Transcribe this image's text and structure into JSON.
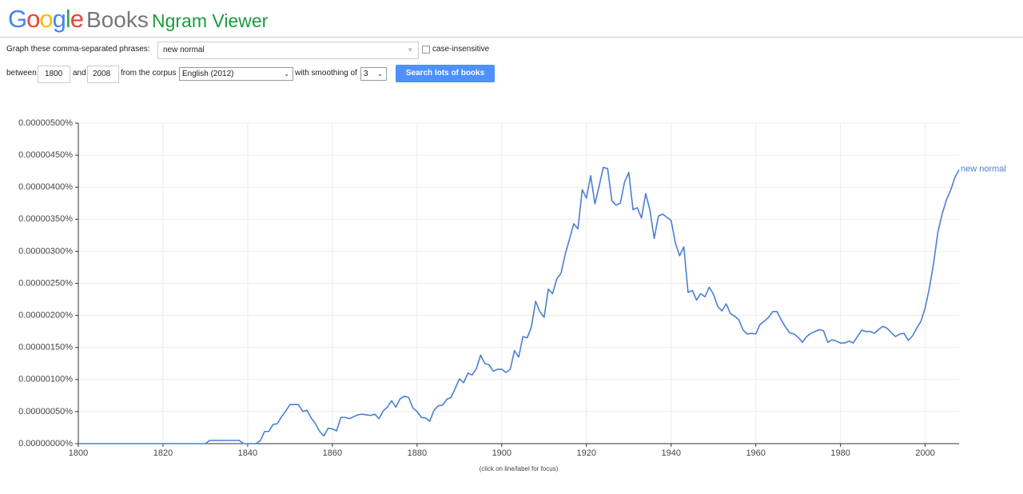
{
  "header": {
    "logo_letters": [
      "G",
      "o",
      "o",
      "g",
      "l",
      "e"
    ],
    "books": "Books",
    "product": "Ngram Viewer"
  },
  "form": {
    "phrases_label": "Graph these comma-separated phrases:",
    "phrases_value": "new normal",
    "case_insensitive": "case-insensitive",
    "between": "between",
    "start_year": "1800",
    "and": "and",
    "end_year": "2008",
    "corpus_label": "from the corpus",
    "corpus": "English (2012)",
    "smoothing_label": "with smoothing of",
    "smoothing": "3",
    "button": "Search lots of books"
  },
  "chart_data": {
    "type": "line",
    "note": "(click on line/label for focus)",
    "grid": true,
    "xlim": [
      1800,
      2008
    ],
    "xticks": [
      1800,
      1820,
      1840,
      1860,
      1880,
      1900,
      1920,
      1940,
      1960,
      1980,
      2000
    ],
    "ylim": [
      0,
      5e-06
    ],
    "yticks": [
      {
        "value": 0,
        "label": "0.00000000%"
      },
      {
        "value": 5e-07,
        "label": "0.00000050%"
      },
      {
        "value": 1e-06,
        "label": "0.00000100%"
      },
      {
        "value": 1.5e-06,
        "label": "0.00000150%"
      },
      {
        "value": 2e-06,
        "label": "0.00000200%"
      },
      {
        "value": 2.5e-06,
        "label": "0.00000250%"
      },
      {
        "value": 3e-06,
        "label": "0.00000300%"
      },
      {
        "value": 3.5e-06,
        "label": "0.00000350%"
      },
      {
        "value": 4e-06,
        "label": "0.00000400%"
      },
      {
        "value": 4.5e-06,
        "label": "0.00000450%"
      },
      {
        "value": 5e-06,
        "label": "0.00000500%"
      }
    ],
    "x": [
      1800,
      1801,
      1802,
      1803,
      1804,
      1805,
      1806,
      1807,
      1808,
      1809,
      1810,
      1811,
      1812,
      1813,
      1814,
      1815,
      1816,
      1817,
      1818,
      1819,
      1820,
      1821,
      1822,
      1823,
      1824,
      1825,
      1826,
      1827,
      1828,
      1829,
      1830,
      1831,
      1832,
      1833,
      1834,
      1835,
      1836,
      1837,
      1838,
      1839,
      1840,
      1841,
      1842,
      1843,
      1844,
      1845,
      1846,
      1847,
      1848,
      1849,
      1850,
      1851,
      1852,
      1853,
      1854,
      1855,
      1856,
      1857,
      1858,
      1859,
      1860,
      1861,
      1862,
      1863,
      1864,
      1865,
      1866,
      1867,
      1868,
      1869,
      1870,
      1871,
      1872,
      1873,
      1874,
      1875,
      1876,
      1877,
      1878,
      1879,
      1880,
      1881,
      1882,
      1883,
      1884,
      1885,
      1886,
      1887,
      1888,
      1889,
      1890,
      1891,
      1892,
      1893,
      1894,
      1895,
      1896,
      1897,
      1898,
      1899,
      1900,
      1901,
      1902,
      1903,
      1904,
      1905,
      1906,
      1907,
      1908,
      1909,
      1910,
      1911,
      1912,
      1913,
      1914,
      1915,
      1916,
      1917,
      1918,
      1919,
      1920,
      1921,
      1922,
      1923,
      1924,
      1925,
      1926,
      1927,
      1928,
      1929,
      1930,
      1931,
      1932,
      1933,
      1934,
      1935,
      1936,
      1937,
      1938,
      1939,
      1940,
      1941,
      1942,
      1943,
      1944,
      1945,
      1946,
      1947,
      1948,
      1949,
      1950,
      1951,
      1952,
      1953,
      1954,
      1955,
      1956,
      1957,
      1958,
      1959,
      1960,
      1961,
      1962,
      1963,
      1964,
      1965,
      1966,
      1967,
      1968,
      1969,
      1970,
      1971,
      1972,
      1973,
      1974,
      1975,
      1976,
      1977,
      1978,
      1979,
      1980,
      1981,
      1982,
      1983,
      1984,
      1985,
      1986,
      1987,
      1988,
      1989,
      1990,
      1991,
      1992,
      1993,
      1994,
      1995,
      1996,
      1997,
      1998,
      1999,
      2000,
      2001,
      2002,
      2003,
      2004,
      2005,
      2006,
      2007,
      2008
    ],
    "series": [
      {
        "name": "new normal",
        "color": "#4a7fd4",
        "values": [
          0,
          0,
          0,
          0,
          0,
          0,
          0,
          0,
          0,
          0,
          0,
          0,
          0,
          0,
          0,
          0,
          0,
          0,
          0,
          0,
          0,
          0,
          0,
          0,
          0,
          0,
          0,
          0,
          0,
          0,
          0,
          5e-08,
          5e-08,
          5e-08,
          5e-08,
          5e-08,
          5e-08,
          5e-08,
          5e-08,
          0,
          0,
          0,
          0,
          5e-08,
          1.9e-07,
          1.9e-07,
          3e-07,
          3.1e-07,
          4.2e-07,
          5.1e-07,
          6.1e-07,
          6.1e-07,
          6.1e-07,
          5e-07,
          5.2e-07,
          4e-07,
          3.1e-07,
          1.9e-07,
          1.2e-07,
          2.4e-07,
          2.3e-07,
          2e-07,
          4.1e-07,
          4.1e-07,
          3.9e-07,
          4.2e-07,
          4.5e-07,
          4.6e-07,
          4.5e-07,
          4.4e-07,
          4.6e-07,
          3.9e-07,
          5.1e-07,
          5.7e-07,
          6.7e-07,
          5.7e-07,
          7e-07,
          7.4e-07,
          7.2e-07,
          5.6e-07,
          5e-07,
          4.1e-07,
          4e-07,
          3.5e-07,
          5.2e-07,
          5.9e-07,
          6e-07,
          6.9e-07,
          7.2e-07,
          8.6e-07,
          1.01e-06,
          9.5e-07,
          1.1e-06,
          1.07e-06,
          1.17e-06,
          1.38e-06,
          1.25e-06,
          1.23e-06,
          1.13e-06,
          1.16e-06,
          1.16e-06,
          1.11e-06,
          1.16e-06,
          1.45e-06,
          1.35e-06,
          1.67e-06,
          1.65e-06,
          1.82e-06,
          2.22e-06,
          2.06e-06,
          1.97e-06,
          2.41e-06,
          2.34e-06,
          2.57e-06,
          2.66e-06,
          2.96e-06,
          3.19e-06,
          3.43e-06,
          3.35e-06,
          3.96e-06,
          3.83e-06,
          4.18e-06,
          3.74e-06,
          4.02e-06,
          4.31e-06,
          4.29e-06,
          3.79e-06,
          3.72e-06,
          3.75e-06,
          4.08e-06,
          4.23e-06,
          3.65e-06,
          3.68e-06,
          3.52e-06,
          3.9e-06,
          3.64e-06,
          3.2e-06,
          3.55e-06,
          3.58e-06,
          3.53e-06,
          3.48e-06,
          3.13e-06,
          2.93e-06,
          3.07e-06,
          2.36e-06,
          2.39e-06,
          2.24e-06,
          2.34e-06,
          2.29e-06,
          2.44e-06,
          2.33e-06,
          2.14e-06,
          2.07e-06,
          2.18e-06,
          2.03e-06,
          1.99e-06,
          1.93e-06,
          1.77e-06,
          1.71e-06,
          1.72e-06,
          1.71e-06,
          1.86e-06,
          1.91e-06,
          1.97e-06,
          2.06e-06,
          2.06e-06,
          1.93e-06,
          1.82e-06,
          1.73e-06,
          1.71e-06,
          1.66e-06,
          1.58e-06,
          1.67e-06,
          1.72e-06,
          1.75e-06,
          1.78e-06,
          1.76e-06,
          1.58e-06,
          1.62e-06,
          1.6e-06,
          1.57e-06,
          1.57e-06,
          1.6e-06,
          1.57e-06,
          1.67e-06,
          1.77e-06,
          1.75e-06,
          1.75e-06,
          1.72e-06,
          1.78e-06,
          1.83e-06,
          1.8e-06,
          1.73e-06,
          1.67e-06,
          1.71e-06,
          1.72e-06,
          1.61e-06,
          1.68e-06,
          1.8e-06,
          1.91e-06,
          2.12e-06,
          2.43e-06,
          2.82e-06,
          3.3e-06,
          3.58e-06,
          3.8e-06,
          3.95e-06,
          4.15e-06,
          4.27e-06
        ]
      }
    ]
  }
}
